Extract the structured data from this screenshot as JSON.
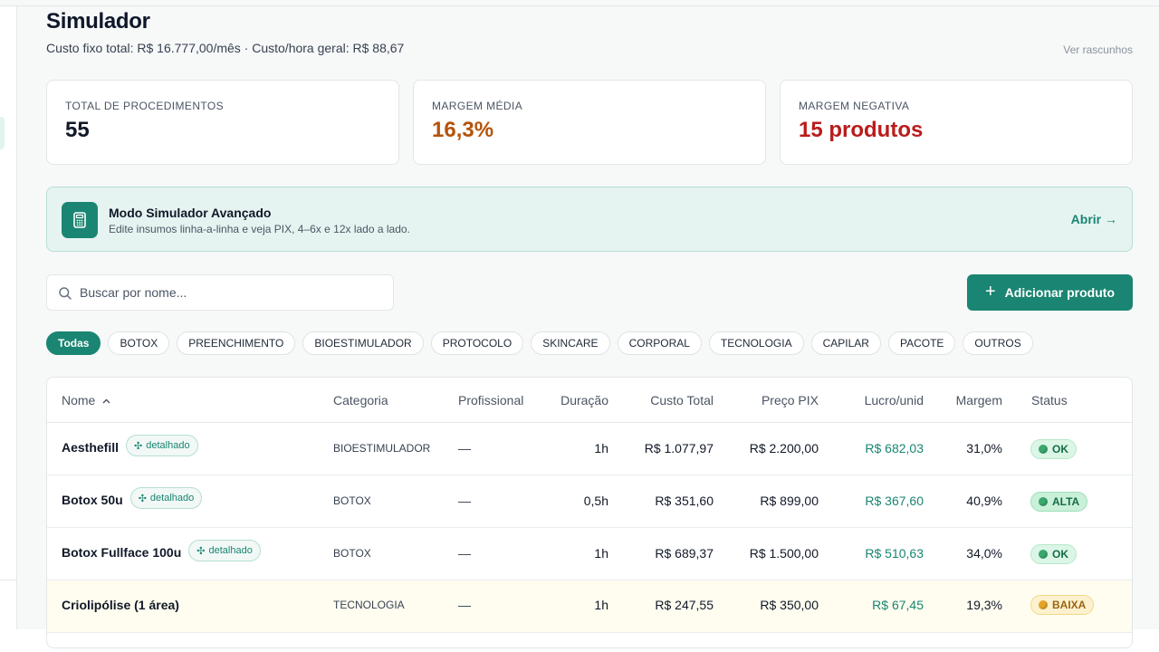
{
  "page": {
    "title": "Simulador",
    "subtitle": "Custo fixo total: R$ 16.777,00/mês · Custo/hora geral: R$ 88,67",
    "drafts_link": "Ver rascunhos"
  },
  "stats": [
    {
      "label": "TOTAL DE PROCEDIMENTOS",
      "value": "55",
      "color": "#111827"
    },
    {
      "label": "MARGEM MÉDIA",
      "value": "16,3%",
      "color": "#b45309"
    },
    {
      "label": "MARGEM NEGATIVA",
      "value": "15 produtos",
      "color": "#b91c1c"
    }
  ],
  "banner": {
    "icon": "calculator-icon",
    "title": "Modo Simulador Avançado",
    "description": "Edite insumos linha-a-linha e veja PIX, 4–6x e 12x lado a lado.",
    "action": "Abrir →"
  },
  "search": {
    "placeholder": "Buscar por nome...",
    "value": ""
  },
  "add_button": {
    "label": "Adicionar produto",
    "icon": "plus-icon"
  },
  "filters": [
    "Todas",
    "BOTOX",
    "PREENCHIMENTO",
    "BIOESTIMULADOR",
    "PROTOCOLO",
    "SKINCARE",
    "CORPORAL",
    "TECNOLOGIA",
    "CAPILAR",
    "PACOTE",
    "OUTROS"
  ],
  "active_filter": "Todas",
  "table": {
    "columns": {
      "name": "Nome",
      "category": "Categoria",
      "professional": "Profissional",
      "duration": "Duração",
      "total_cost": "Custo Total",
      "pix_price": "Preço PIX",
      "profit": "Lucro/unid",
      "margin": "Margem",
      "status": "Status"
    },
    "sort_indicator": "^",
    "rows": [
      {
        "name": "Aesthefill",
        "tag": "detalhado",
        "category": "BIOESTIMULADOR",
        "professional": "—",
        "duration": "1h",
        "total_cost": "R$ 1.077,97",
        "pix_price": "R$ 2.200,00",
        "profit": "R$ 682,03",
        "margin": "31,0%",
        "status": "OK"
      },
      {
        "name": "Botox 50u",
        "tag": "detalhado",
        "category": "BOTOX",
        "professional": "—",
        "duration": "0,5h",
        "total_cost": "R$ 351,60",
        "pix_price": "R$ 899,00",
        "profit": "R$ 367,60",
        "margin": "40,9%",
        "status": "ALTA"
      },
      {
        "name": "Botox Fullface 100u",
        "tag": "detalhado",
        "category": "BOTOX",
        "professional": "—",
        "duration": "1h",
        "total_cost": "R$ 689,37",
        "pix_price": "R$ 1.500,00",
        "profit": "R$ 510,63",
        "margin": "34,0%",
        "status": "OK"
      },
      {
        "name": "Criolipólise (1 área)",
        "tag": "",
        "category": "TECNOLOGIA",
        "professional": "—",
        "duration": "1h",
        "total_cost": "R$ 247,55",
        "pix_price": "R$ 350,00",
        "profit": "R$ 67,45",
        "margin": "19,3%",
        "status": "BAIXA"
      }
    ]
  },
  "colors": {
    "accent": "#1a8572",
    "warning_row": "#fefdf0"
  }
}
